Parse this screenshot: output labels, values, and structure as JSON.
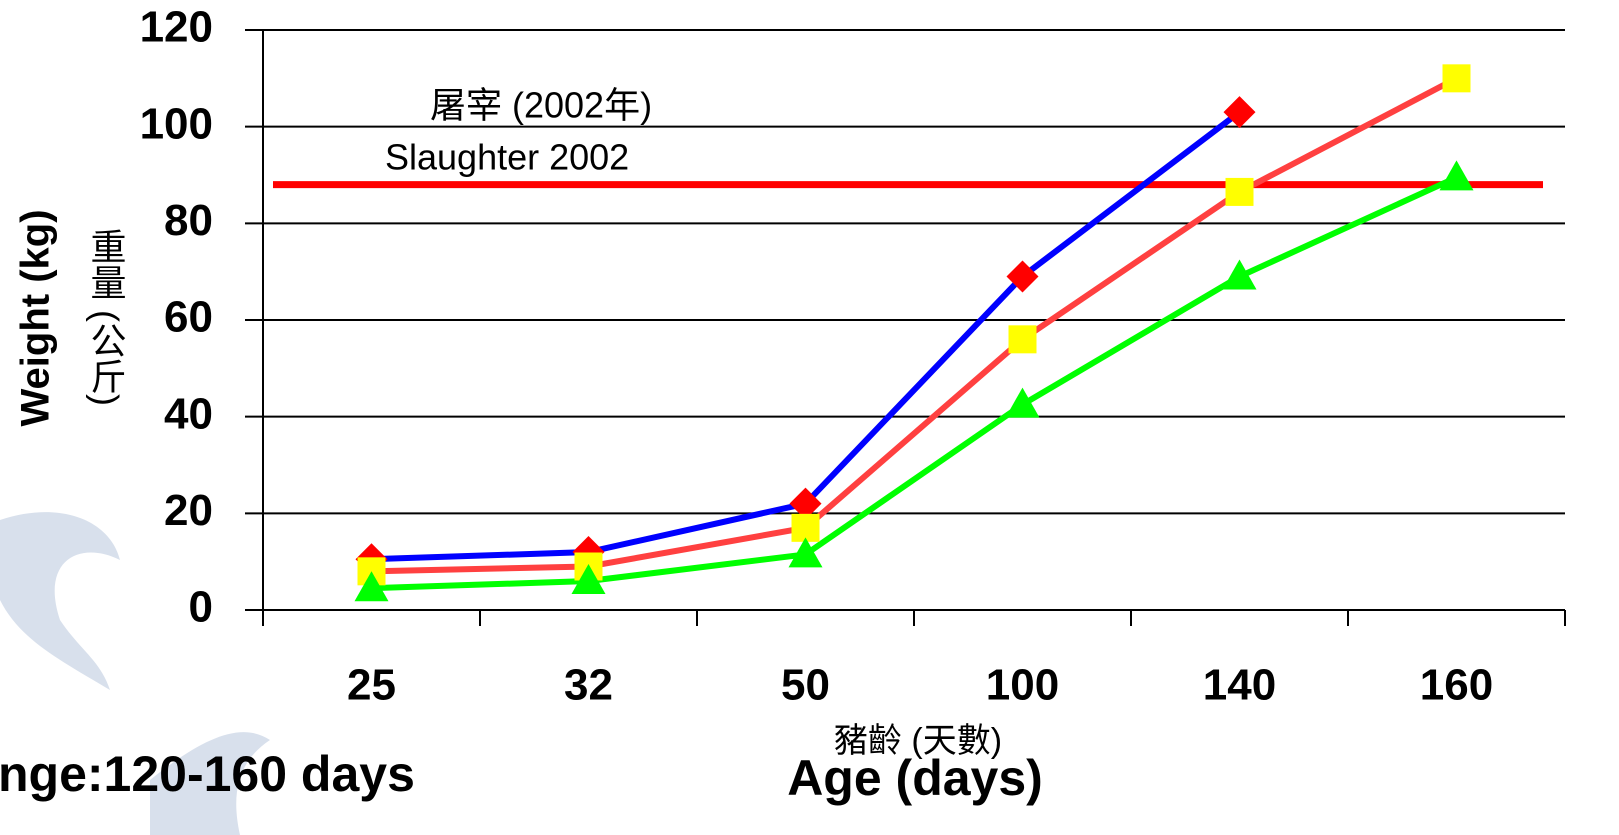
{
  "chart_data": {
    "type": "line",
    "categories": [
      "25",
      "32",
      "50",
      "100",
      "140",
      "160"
    ],
    "series": [
      {
        "color": "#0000ff",
        "marker": "diamond",
        "marker_color": "#ff0000",
        "values": [
          10.5,
          12,
          22,
          69,
          103,
          null
        ]
      },
      {
        "color": "#ff4040",
        "marker": "square",
        "marker_color": "#ffff00",
        "values": [
          8,
          9,
          17,
          56,
          86.5,
          110
        ]
      },
      {
        "color": "#00ff00",
        "marker": "triangle",
        "marker_color": "#00ff00",
        "values": [
          4.5,
          6,
          11.5,
          42.5,
          69,
          89.5
        ]
      }
    ],
    "ylim": [
      0,
      120
    ],
    "yticks": [
      0,
      20,
      40,
      60,
      80,
      100,
      120
    ],
    "grid": true,
    "y_label": "Weight (kg)",
    "y_label_zh": "重量 (公斤)",
    "x_label": "Age (days)",
    "x_label_zh": "豬齡 (天數)",
    "reference_line": {
      "value": 88,
      "color": "#ff0000",
      "label": "Slaughter 2002",
      "label_zh": "屠宰 (2002年)"
    },
    "footnote": "nge:120-160 days"
  }
}
